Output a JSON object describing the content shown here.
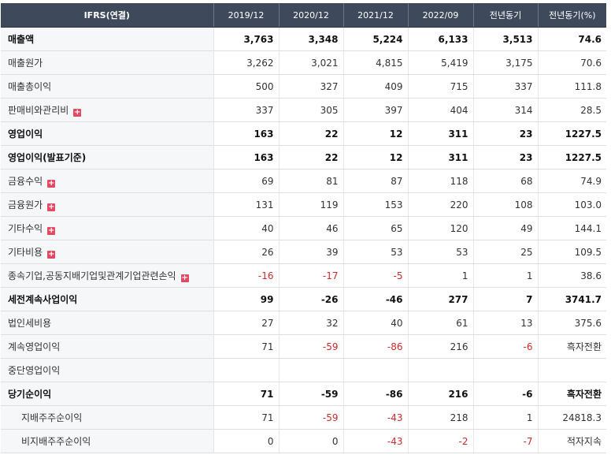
{
  "header": {
    "label": "IFRS(연결)",
    "columns": [
      "2019/12",
      "2020/12",
      "2021/12",
      "2022/09",
      "전년동기",
      "전년동기(%)"
    ]
  },
  "rows": [
    {
      "label": "매출액",
      "expandable": false,
      "bold": true,
      "sub": false,
      "values": [
        "3,763",
        "3,348",
        "5,224",
        "6,133",
        "3,513",
        "74.6"
      ]
    },
    {
      "label": "매출원가",
      "expandable": false,
      "bold": false,
      "sub": false,
      "values": [
        "3,262",
        "3,021",
        "4,815",
        "5,419",
        "3,175",
        "70.6"
      ]
    },
    {
      "label": "매출총이익",
      "expandable": false,
      "bold": false,
      "sub": false,
      "values": [
        "500",
        "327",
        "409",
        "715",
        "337",
        "111.8"
      ]
    },
    {
      "label": "판매비와관리비",
      "expandable": true,
      "bold": false,
      "sub": false,
      "values": [
        "337",
        "305",
        "397",
        "404",
        "314",
        "28.5"
      ]
    },
    {
      "label": "영업이익",
      "expandable": false,
      "bold": true,
      "sub": false,
      "values": [
        "163",
        "22",
        "12",
        "311",
        "23",
        "1227.5"
      ]
    },
    {
      "label": "영업이익(발표기준)",
      "expandable": false,
      "bold": true,
      "sub": false,
      "values": [
        "163",
        "22",
        "12",
        "311",
        "23",
        "1227.5"
      ]
    },
    {
      "label": "금융수익",
      "expandable": true,
      "bold": false,
      "sub": false,
      "values": [
        "69",
        "81",
        "87",
        "118",
        "68",
        "74.9"
      ]
    },
    {
      "label": "금융원가",
      "expandable": true,
      "bold": false,
      "sub": false,
      "values": [
        "131",
        "119",
        "153",
        "220",
        "108",
        "103.0"
      ]
    },
    {
      "label": "기타수익",
      "expandable": true,
      "bold": false,
      "sub": false,
      "values": [
        "40",
        "46",
        "65",
        "120",
        "49",
        "144.1"
      ]
    },
    {
      "label": "기타비용",
      "expandable": true,
      "bold": false,
      "sub": false,
      "values": [
        "26",
        "39",
        "53",
        "53",
        "25",
        "109.5"
      ]
    },
    {
      "label": "종속기업,공동지배기업및관계기업관련손익",
      "expandable": true,
      "bold": false,
      "sub": false,
      "values": [
        "-16",
        "-17",
        "-5",
        "1",
        "1",
        "38.6"
      ]
    },
    {
      "label": "세전계속사업이익",
      "expandable": false,
      "bold": true,
      "sub": false,
      "values": [
        "99",
        "-26",
        "-46",
        "277",
        "7",
        "3741.7"
      ]
    },
    {
      "label": "법인세비용",
      "expandable": false,
      "bold": false,
      "sub": false,
      "values": [
        "27",
        "32",
        "40",
        "61",
        "13",
        "375.6"
      ]
    },
    {
      "label": "계속영업이익",
      "expandable": false,
      "bold": false,
      "sub": false,
      "values": [
        "71",
        "-59",
        "-86",
        "216",
        "-6",
        "흑자전환"
      ]
    },
    {
      "label": "중단영업이익",
      "expandable": false,
      "bold": false,
      "sub": false,
      "values": [
        "",
        "",
        "",
        "",
        "",
        ""
      ]
    },
    {
      "label": "당기순이익",
      "expandable": false,
      "bold": true,
      "sub": false,
      "values": [
        "71",
        "-59",
        "-86",
        "216",
        "-6",
        "흑자전환"
      ]
    },
    {
      "label": "지배주주순이익",
      "expandable": false,
      "bold": false,
      "sub": true,
      "values": [
        "71",
        "-59",
        "-43",
        "218",
        "1",
        "24818.3"
      ]
    },
    {
      "label": "비지배주주순이익",
      "expandable": false,
      "bold": false,
      "sub": true,
      "values": [
        "0",
        "0",
        "-43",
        "-2",
        "-7",
        "적자지속"
      ]
    }
  ],
  "icons": {
    "expand": "plus-icon"
  },
  "colors": {
    "header_bg": "#3e4a5c",
    "negative": "#cc2a2a",
    "expand_icon": "#e04a62"
  }
}
